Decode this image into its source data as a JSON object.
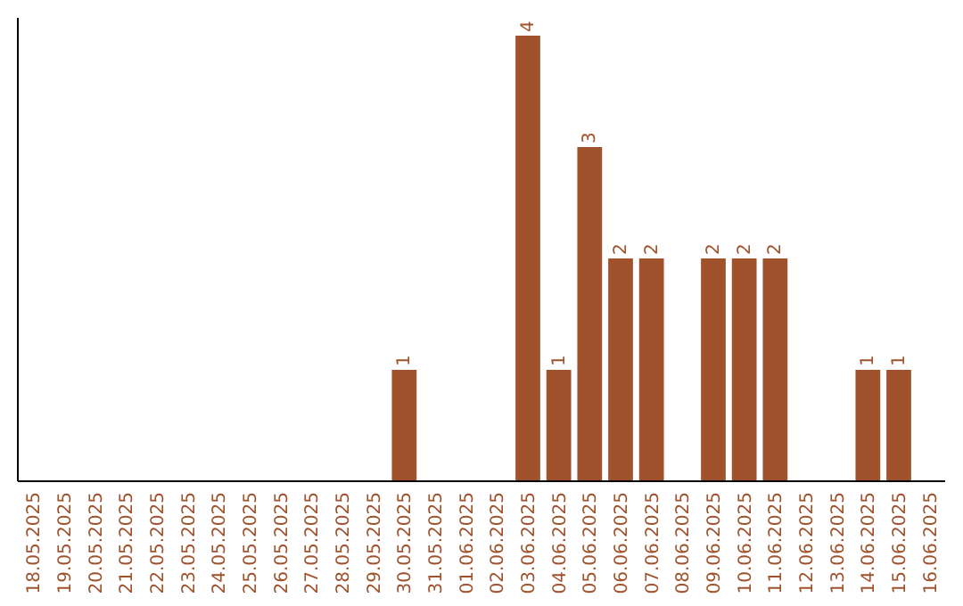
{
  "chart_data": {
    "type": "bar",
    "categories": [
      "18.05.2025",
      "19.05.2025",
      "20.05.2025",
      "21.05.2025",
      "22.05.2025",
      "23.05.2025",
      "24.05.2025",
      "25.05.2025",
      "26.05.2025",
      "27.05.2025",
      "28.05.2025",
      "29.05.2025",
      "30.05.2025",
      "31.05.2025",
      "01.06.2025",
      "02.06.2025",
      "03.06.2025",
      "04.06.2025",
      "05.06.2025",
      "06.06.2025",
      "07.06.2025",
      "08.06.2025",
      "09.06.2025",
      "10.06.2025",
      "11.06.2025",
      "12.06.2025",
      "13.06.2025",
      "14.06.2025",
      "15.06.2025",
      "16.06.2025"
    ],
    "values": [
      null,
      null,
      null,
      null,
      null,
      null,
      null,
      null,
      null,
      null,
      null,
      null,
      1,
      null,
      null,
      null,
      4,
      1,
      3,
      2,
      2,
      null,
      2,
      2,
      2,
      null,
      null,
      1,
      1,
      null
    ],
    "value_labels": [
      null,
      null,
      null,
      null,
      null,
      null,
      null,
      null,
      null,
      null,
      null,
      null,
      "1",
      null,
      null,
      null,
      "4",
      "1",
      "3",
      "2",
      "2",
      null,
      "2",
      "2",
      "2",
      null,
      null,
      "1",
      "1",
      null
    ],
    "color": "#a0522d"
  }
}
